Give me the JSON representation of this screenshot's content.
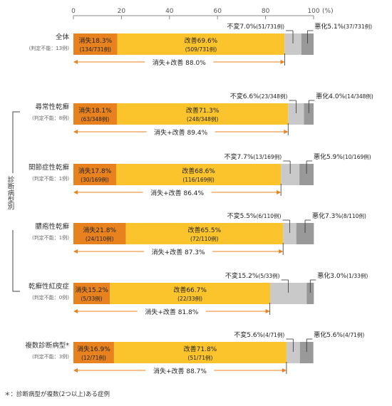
{
  "chart_data": {
    "type": "bar",
    "orientation": "horizontal",
    "stacked": true,
    "axis": {
      "ticks": [
        "0",
        "20",
        "40",
        "60",
        "80",
        "100"
      ],
      "tick_values": [
        0,
        20,
        40,
        60,
        80,
        100
      ],
      "unit": "(%)",
      "xlim": [
        0,
        100
      ]
    },
    "group_label": "診断病型別",
    "colors": {
      "disappear": "#e8821e",
      "improve": "#fbc42c",
      "unchanged": "#c9c9c9",
      "worse": "#999999",
      "arrow": "#e8821e",
      "axis": "#888888"
    },
    "rows": [
      {
        "name": "全体",
        "note": "(判定不能：13例)",
        "disappear": {
          "value": 18.3,
          "label": "消失18.3%",
          "count": "(134/731例)"
        },
        "improve": {
          "value": 69.6,
          "label": "改善69.6%",
          "count": "(509/731例)"
        },
        "unchanged": {
          "value": 7.0,
          "label": "不変7.0%",
          "count": "(51/731例)"
        },
        "worse": {
          "value": 5.1,
          "label": "悪化5.1%",
          "count": "(37/731例)"
        },
        "sum": {
          "value": 88.0,
          "label": "消失+改善 88.0%"
        }
      },
      {
        "name": "尋常性乾癬",
        "note": "(判定不能：8例)",
        "disappear": {
          "value": 18.1,
          "label": "消失18.1%",
          "count": "(63/348例)"
        },
        "improve": {
          "value": 71.3,
          "label": "改善71.3%",
          "count": "(248/348例)"
        },
        "unchanged": {
          "value": 6.6,
          "label": "不変6.6%",
          "count": "(23/348例)"
        },
        "worse": {
          "value": 4.0,
          "label": "悪化4.0%",
          "count": "(14/348例)"
        },
        "sum": {
          "value": 89.4,
          "label": "消失+改善 89.4%"
        }
      },
      {
        "name": "関節症性乾癬",
        "note": "(判定不能：1例)",
        "disappear": {
          "value": 17.8,
          "label": "消失17.8%",
          "count": "(30/169例)"
        },
        "improve": {
          "value": 68.6,
          "label": "改善68.6%",
          "count": "(116/169例)"
        },
        "unchanged": {
          "value": 7.7,
          "label": "不変7.7%",
          "count": "(13/169例)"
        },
        "worse": {
          "value": 5.9,
          "label": "悪化5.9%",
          "count": "(10/169例)"
        },
        "sum": {
          "value": 86.4,
          "label": "消失+改善 86.4%"
        }
      },
      {
        "name": "膿疱性乾癬",
        "note": "(判定不能：1例)",
        "disappear": {
          "value": 21.8,
          "label": "消失21.8%",
          "count": "(24/110例)"
        },
        "improve": {
          "value": 65.5,
          "label": "改善65.5%",
          "count": "(72/110例)"
        },
        "unchanged": {
          "value": 5.5,
          "label": "不変5.5%",
          "count": "(6/110例)"
        },
        "worse": {
          "value": 7.3,
          "label": "悪化7.3%",
          "count": "(8/110例)"
        },
        "sum": {
          "value": 87.3,
          "label": "消失+改善 87.3%"
        }
      },
      {
        "name": "乾癬性紅皮症",
        "note": "(判定不能：0例)",
        "disappear": {
          "value": 15.2,
          "label": "消失15.2%",
          "count": "(5/33例)"
        },
        "improve": {
          "value": 66.7,
          "label": "改善66.7%",
          "count": "(22/33例)"
        },
        "unchanged": {
          "value": 15.2,
          "label": "不変15.2%",
          "count": "(5/33例)"
        },
        "worse": {
          "value": 3.0,
          "label": "悪化3.0%",
          "count": "(1/33例)"
        },
        "sum": {
          "value": 81.8,
          "label": "消失+改善 81.8%"
        }
      },
      {
        "name": "複数診断病型*",
        "note": "(判定不能：3例)",
        "disappear": {
          "value": 16.9,
          "label": "消失16.9%",
          "count": "(12/71例)"
        },
        "improve": {
          "value": 71.8,
          "label": "改善71.8%",
          "count": "(51/71例)"
        },
        "unchanged": {
          "value": 5.6,
          "label": "不変5.6%",
          "count": "(4/71例)"
        },
        "worse": {
          "value": 5.6,
          "label": "悪化5.6%",
          "count": "(4/71例)"
        },
        "sum": {
          "value": 88.7,
          "label": "消失+改善 88.7%"
        }
      }
    ],
    "footnote": "＊：診断病型が複数(2つ以上)ある症例"
  }
}
